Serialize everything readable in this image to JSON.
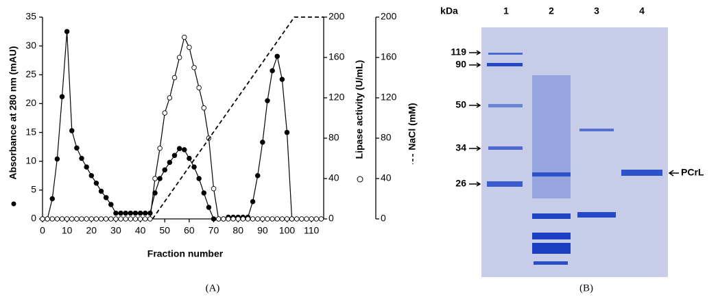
{
  "chart_data": {
    "type": "line",
    "xlabel": "Fraction number",
    "ylabel": "Absorbance at 280 nm (mAU)",
    "y2label": "Lipase activity (U/mL)",
    "y3label": "NaCl (mM)",
    "panel_label": "(A)",
    "xlim": [
      0,
      115
    ],
    "xticks": [
      0,
      10,
      20,
      30,
      40,
      50,
      60,
      70,
      80,
      90,
      100,
      110
    ],
    "ylim": [
      0,
      35
    ],
    "yticks": [
      0,
      5,
      10,
      15,
      20,
      25,
      30,
      35
    ],
    "y2lim": [
      0,
      200
    ],
    "y2ticks": [
      0,
      40,
      80,
      120,
      160,
      200
    ],
    "series": [
      {
        "color": "#000000",
        "marker": "filled",
        "dash": false,
        "x": [
          0,
          2,
          4,
          6,
          8,
          10,
          12,
          14,
          16,
          18,
          20,
          22,
          24,
          26,
          28,
          30,
          32,
          34,
          36,
          38,
          40,
          42,
          44,
          46,
          48,
          50,
          52,
          54,
          56,
          58,
          60,
          62,
          64,
          66,
          68,
          70,
          72,
          74,
          76,
          78,
          80,
          82,
          84,
          86,
          88,
          90,
          92,
          94,
          96,
          98,
          100,
          102
        ],
        "values": [
          0,
          0,
          3.5,
          10.4,
          21.2,
          32.5,
          15.3,
          12.3,
          10.5,
          9,
          7.5,
          6.2,
          4.8,
          3.7,
          2.5,
          1,
          1,
          1,
          1,
          1,
          1,
          1,
          1,
          4.5,
          7,
          8.5,
          9.8,
          11,
          12.2,
          12,
          10.5,
          9,
          7,
          4.5,
          2,
          0,
          0,
          0,
          0.3,
          0.3,
          0.3,
          0.3,
          0.3,
          3,
          7.5,
          13.3,
          20.5,
          25.7,
          28.2,
          24.2,
          15,
          0
        ]
      },
      {
        "color": "#000000",
        "marker": "open",
        "dash": false,
        "axis": "y2",
        "x": [
          0,
          2,
          4,
          6,
          8,
          10,
          12,
          14,
          16,
          18,
          20,
          22,
          24,
          26,
          28,
          30,
          32,
          34,
          36,
          38,
          40,
          42,
          44,
          46,
          48,
          50,
          52,
          54,
          56,
          58,
          60,
          62,
          64,
          66,
          68,
          70,
          72,
          74,
          76,
          78,
          80,
          82,
          84,
          86,
          88,
          90,
          92,
          94,
          96,
          98,
          100,
          102,
          104,
          106,
          108,
          110,
          112,
          114
        ],
        "values": [
          0,
          0,
          0,
          0,
          0,
          0,
          0,
          0,
          0,
          0,
          0,
          0,
          0,
          0,
          0,
          0,
          0,
          0,
          0,
          0,
          0,
          0,
          0,
          40,
          70,
          105,
          120,
          140,
          160,
          180,
          170,
          150,
          130,
          110,
          80,
          30,
          0,
          0,
          0,
          0,
          0,
          0,
          0,
          0,
          0,
          0,
          0,
          0,
          0,
          0,
          0,
          0,
          0,
          0,
          0,
          0,
          0,
          0
        ]
      },
      {
        "color": "#000000",
        "marker": "none",
        "dash": true,
        "axis": "y2",
        "x": [
          45,
          103,
          115
        ],
        "values": [
          0,
          200,
          200
        ]
      }
    ]
  },
  "gel": {
    "panel_label": "(B)",
    "unit": "kDa",
    "lanes": [
      "1",
      "2",
      "3",
      "4"
    ],
    "markers": [
      "119",
      "90",
      "50",
      "34",
      "26"
    ],
    "band_label": "PCrL"
  }
}
